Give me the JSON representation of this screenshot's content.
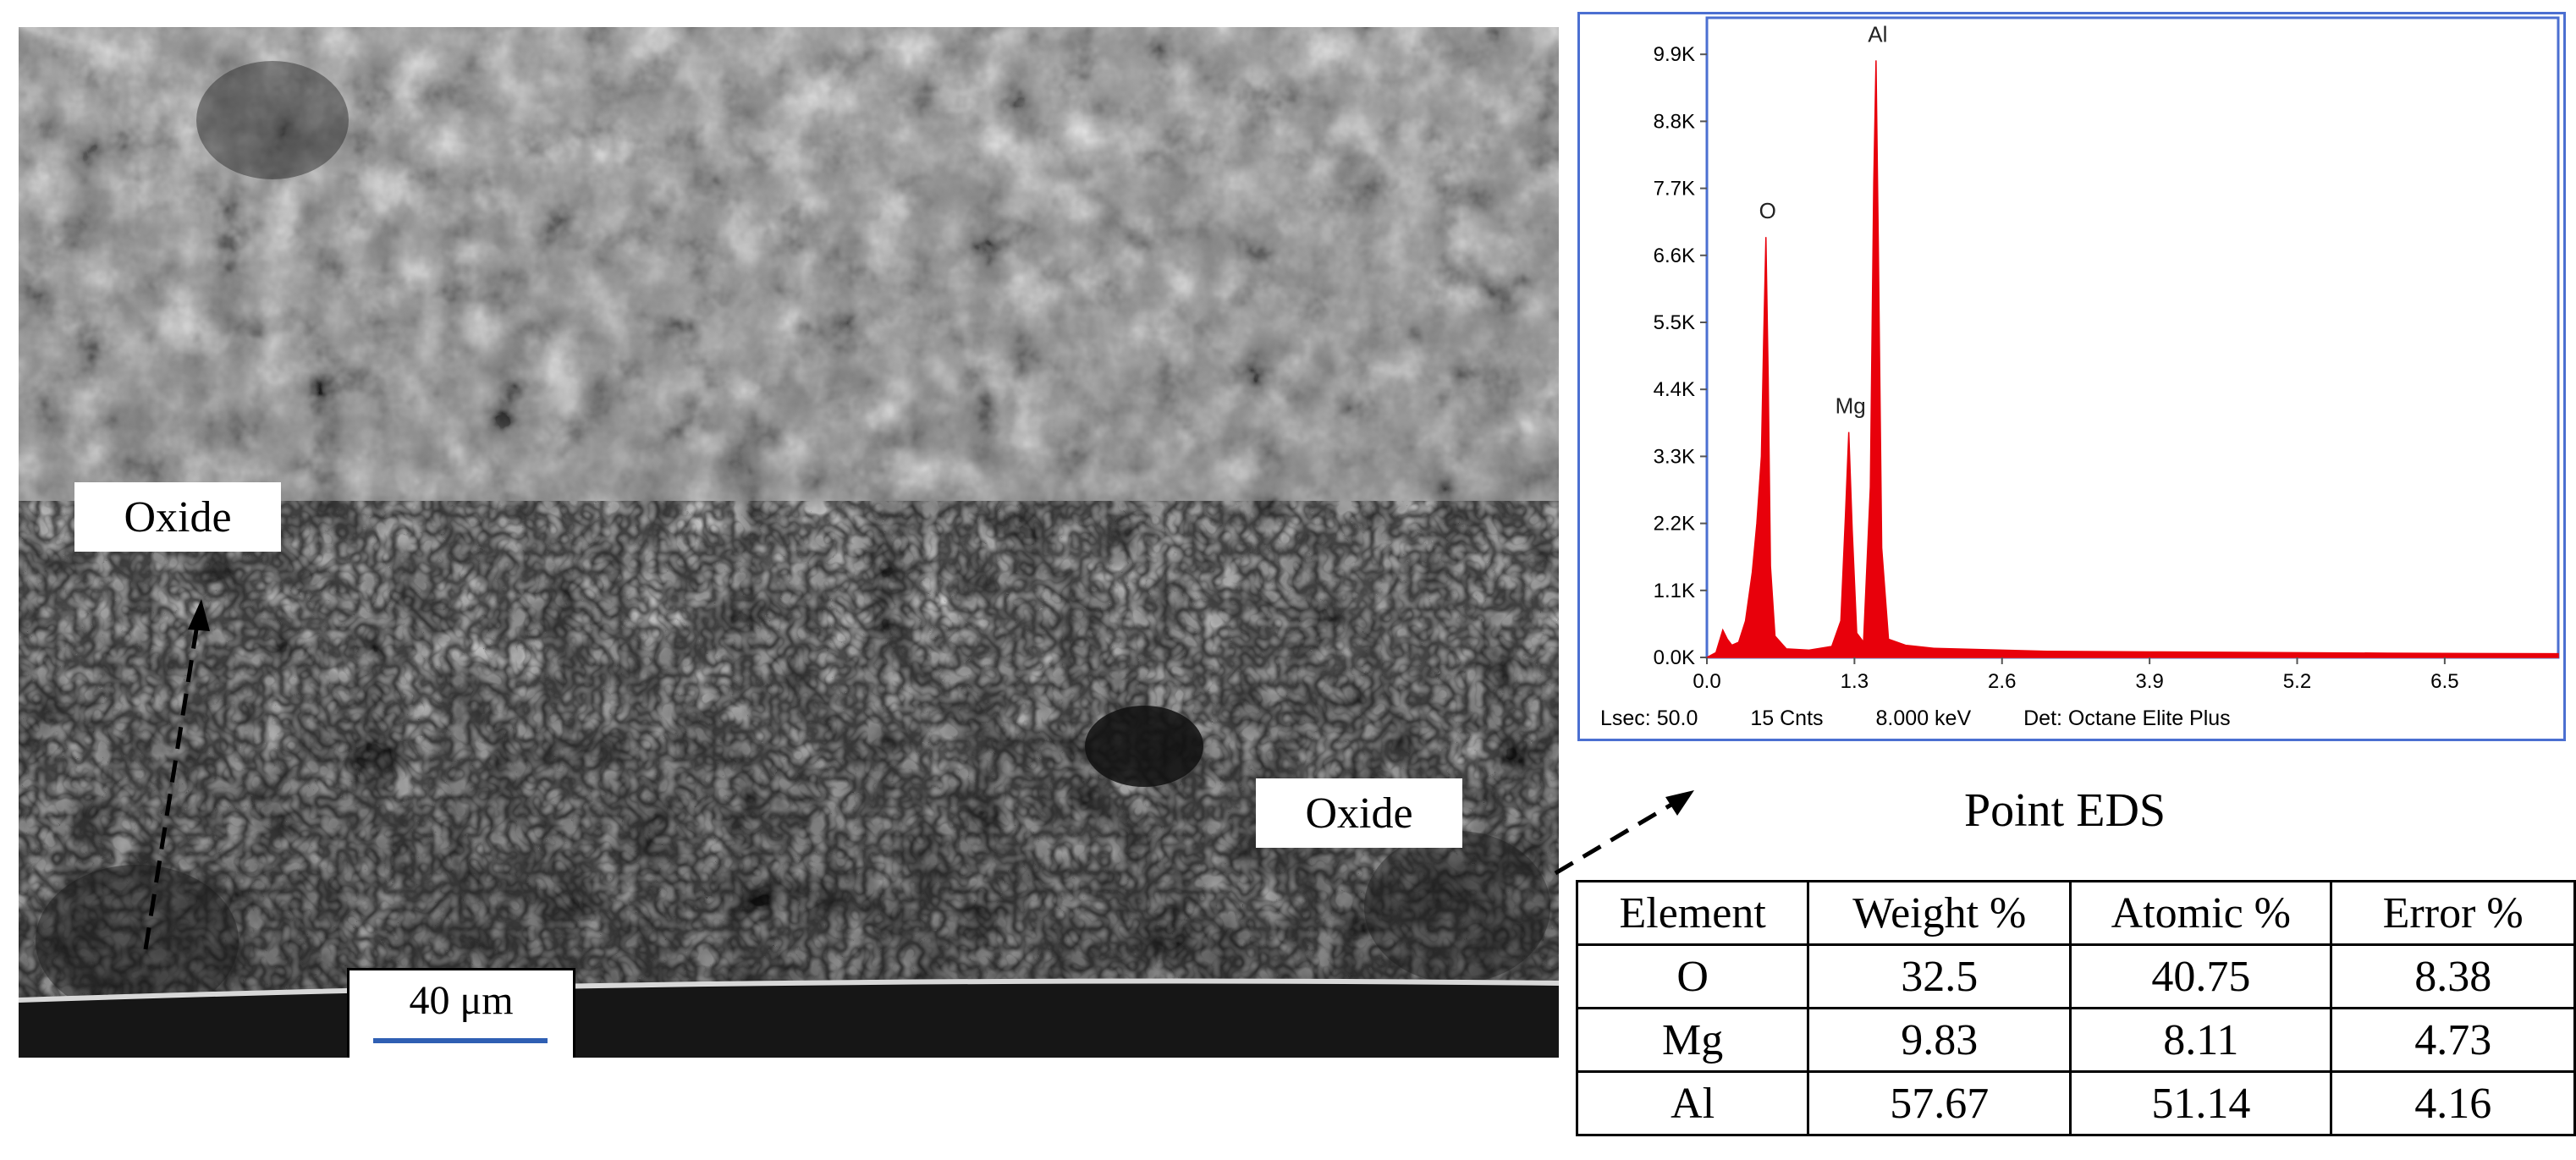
{
  "micrograph": {
    "oxide_label_left": "Oxide",
    "oxide_label_right": "Oxide",
    "scale_bar_label": "40 μm"
  },
  "chart_data": {
    "type": "line",
    "title": "",
    "xlabel": "",
    "ylabel": "",
    "xlim": [
      0.0,
      7.5
    ],
    "ylim": [
      0,
      10500
    ],
    "x_ticks": [
      0.0,
      1.3,
      2.6,
      3.9,
      5.2,
      6.5
    ],
    "x_tick_labels": [
      "0.0",
      "1.3",
      "2.6",
      "3.9",
      "5.2",
      "6.5"
    ],
    "y_ticks": [
      0,
      1100,
      2200,
      3300,
      4400,
      5500,
      6600,
      7700,
      8800,
      9900
    ],
    "y_tick_labels": [
      "0.0K",
      "1.1K",
      "2.2K",
      "3.3K",
      "4.4K",
      "5.5K",
      "6.6K",
      "7.7K",
      "8.8K",
      "9.9K"
    ],
    "grid": false,
    "fill_color": "#e8000b",
    "peaks": [
      {
        "element": "O",
        "energy_keV": 0.52,
        "counts": 6900
      },
      {
        "element": "Mg",
        "energy_keV": 1.25,
        "counts": 3700
      },
      {
        "element": "Al",
        "energy_keV": 1.49,
        "counts": 9800
      }
    ],
    "series": [
      {
        "x": [
          0.0,
          0.08,
          0.14,
          0.18,
          0.22,
          0.28,
          0.34,
          0.4,
          0.44,
          0.48,
          0.5,
          0.52,
          0.54,
          0.56,
          0.6,
          0.7,
          0.9,
          1.1,
          1.18,
          1.22,
          1.25,
          1.28,
          1.32,
          1.38,
          1.44,
          1.47,
          1.49,
          1.51,
          1.54,
          1.6,
          1.75,
          2.0,
          3.0,
          4.0,
          5.0,
          6.0,
          7.5
        ],
        "y": [
          0,
          80,
          450,
          300,
          200,
          250,
          600,
          1400,
          2200,
          3300,
          5200,
          6900,
          4600,
          1500,
          350,
          140,
          120,
          180,
          600,
          2300,
          3700,
          2100,
          400,
          250,
          2800,
          7800,
          9800,
          6800,
          1800,
          300,
          200,
          150,
          100,
          90,
          80,
          70,
          60
        ]
      }
    ],
    "footer": {
      "lsec": "Lsec: 50.0",
      "cnts": "15 Cnts",
      "kev": "8.000 keV",
      "det": "Det: Octane Elite Plus"
    }
  },
  "eds": {
    "title": "Point EDS",
    "headers": [
      "Element",
      "Weight %",
      "Atomic %",
      "Error %"
    ],
    "rows": [
      [
        "O",
        "32.5",
        "40.75",
        "8.38"
      ],
      [
        "Mg",
        "9.83",
        "8.11",
        "4.73"
      ],
      [
        "Al",
        "57.67",
        "51.14",
        "4.16"
      ]
    ]
  }
}
